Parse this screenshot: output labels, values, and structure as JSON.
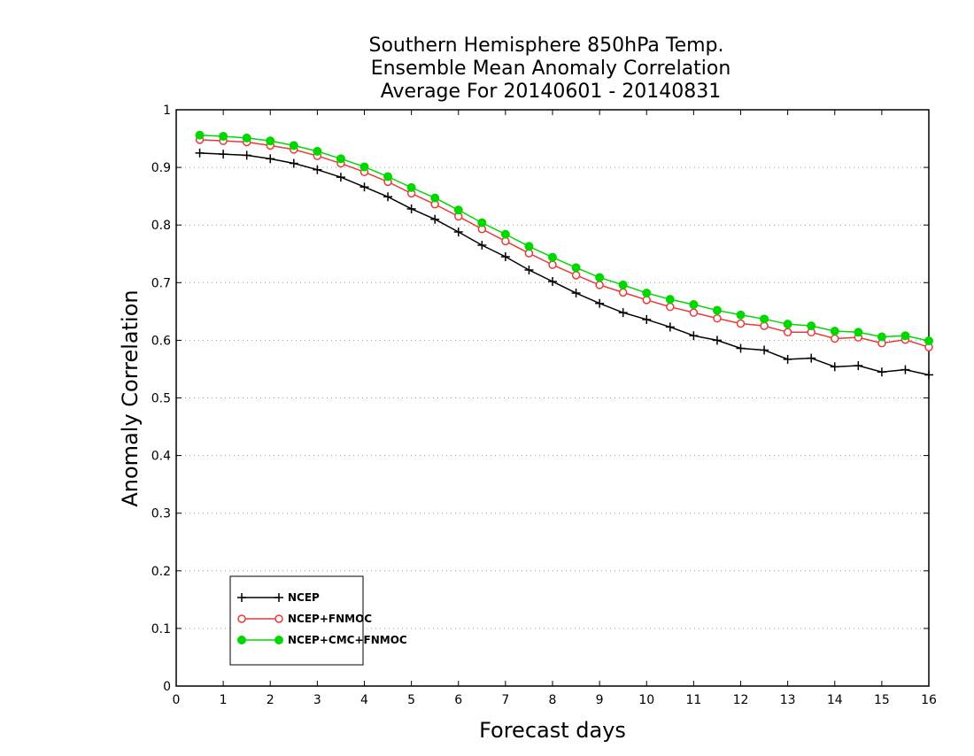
{
  "chart_data": {
    "type": "line",
    "title": [
      "Southern Hemisphere 850hPa Temp.",
      "Ensemble Mean Anomaly Correlation",
      "Average For 20140601 - 20140831"
    ],
    "xlabel": "Forecast days",
    "ylabel": "Anomaly Correlation",
    "xlim": [
      0,
      16
    ],
    "ylim": [
      0,
      1
    ],
    "x_ticks": [
      "0",
      "1",
      "2",
      "3",
      "4",
      "5",
      "6",
      "7",
      "8",
      "9",
      "10",
      "11",
      "12",
      "13",
      "14",
      "15",
      "16"
    ],
    "y_ticks": [
      "0",
      "0.1",
      "0.2",
      "0.3",
      "0.4",
      "0.5",
      "0.6",
      "0.7",
      "0.8",
      "0.9",
      "1"
    ],
    "grid": true,
    "legend_position": "bottom-left",
    "x": [
      0.5,
      1,
      1.5,
      2,
      2.5,
      3,
      3.5,
      4,
      4.5,
      5,
      5.5,
      6,
      6.5,
      7,
      7.5,
      8,
      8.5,
      9,
      9.5,
      10,
      10.5,
      11,
      11.5,
      12,
      12.5,
      13,
      13.5,
      14,
      14.5,
      15,
      15.5,
      16
    ],
    "series": [
      {
        "name": "NCEP",
        "color": "#000000",
        "marker": "plus",
        "values": [
          0.925,
          0.923,
          0.921,
          0.915,
          0.907,
          0.896,
          0.883,
          0.866,
          0.849,
          0.828,
          0.81,
          0.788,
          0.765,
          0.745,
          0.722,
          0.702,
          0.682,
          0.664,
          0.648,
          0.636,
          0.623,
          0.608,
          0.6,
          0.586,
          0.583,
          0.567,
          0.569,
          0.554,
          0.556,
          0.545,
          0.549,
          0.54
        ]
      },
      {
        "name": "NCEP+FNMOC",
        "color": "#e83a3a",
        "marker": "open-circle",
        "values": [
          0.948,
          0.946,
          0.944,
          0.938,
          0.931,
          0.92,
          0.907,
          0.892,
          0.875,
          0.855,
          0.836,
          0.815,
          0.793,
          0.772,
          0.751,
          0.731,
          0.713,
          0.696,
          0.683,
          0.67,
          0.658,
          0.648,
          0.638,
          0.629,
          0.625,
          0.614,
          0.614,
          0.603,
          0.605,
          0.595,
          0.601,
          0.588
        ]
      },
      {
        "name": "NCEP+CMC+FNMOC",
        "color": "#00d800",
        "marker": "filled-circle",
        "values": [
          0.956,
          0.954,
          0.951,
          0.946,
          0.938,
          0.928,
          0.915,
          0.901,
          0.884,
          0.865,
          0.847,
          0.826,
          0.804,
          0.784,
          0.763,
          0.744,
          0.726,
          0.709,
          0.696,
          0.682,
          0.671,
          0.662,
          0.652,
          0.644,
          0.637,
          0.628,
          0.625,
          0.616,
          0.614,
          0.606,
          0.608,
          0.599
        ]
      }
    ]
  }
}
